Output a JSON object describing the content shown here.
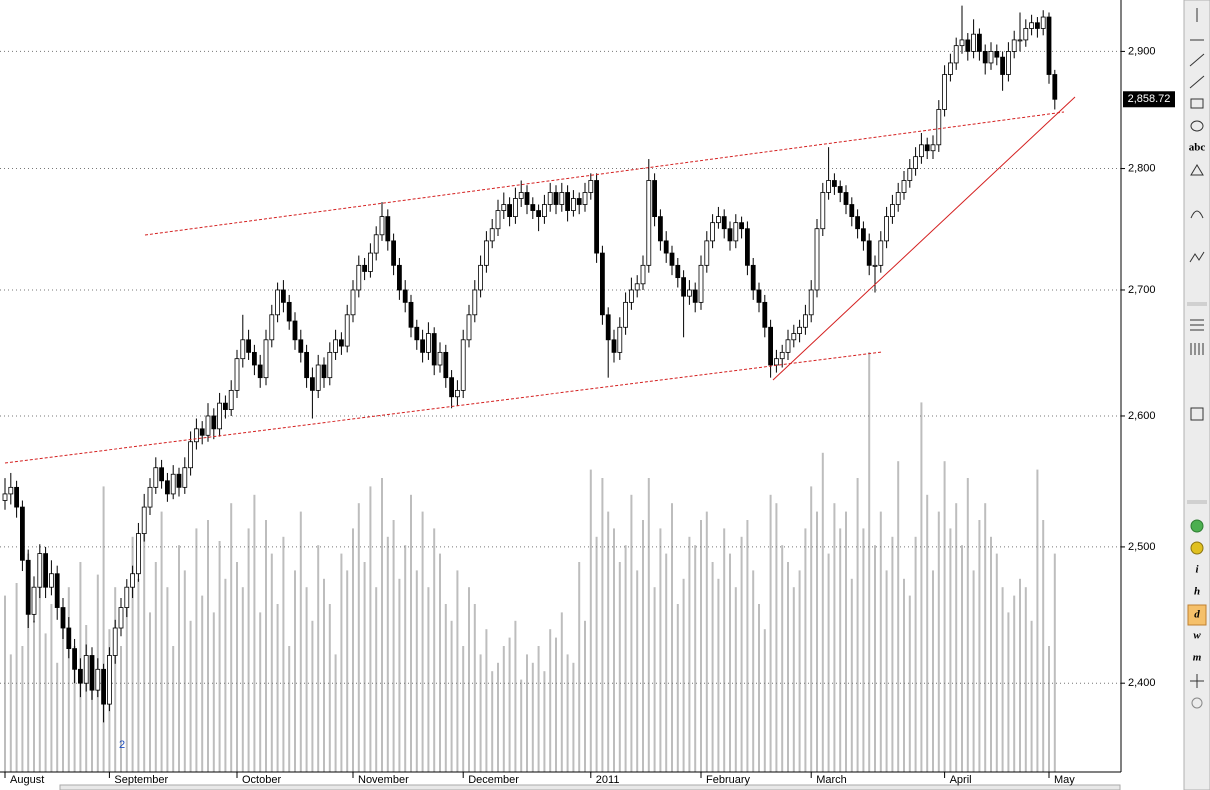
{
  "chart_data": {
    "type": "candlestick",
    "ylim": [
      2337,
      2945
    ],
    "log_scale": true,
    "grid": true,
    "yticks": [
      {
        "value": 2400,
        "label": "2,400"
      },
      {
        "value": 2500,
        "label": "2,500"
      },
      {
        "value": 2600,
        "label": "2,600"
      },
      {
        "value": 2700,
        "label": "2,700"
      },
      {
        "value": 2800,
        "label": "2,800"
      },
      {
        "value": 2900,
        "label": "2,900"
      }
    ],
    "last_price": {
      "value": 2858.72,
      "label": "2,858.72"
    },
    "annotations": [
      "2"
    ],
    "up_color": "#ffffff",
    "down_color": "#000000",
    "volume_color": "#bdbdbd",
    "categories": [
      "August",
      null,
      null,
      null,
      null,
      null,
      null,
      null,
      null,
      null,
      null,
      null,
      null,
      null,
      null,
      null,
      null,
      null,
      "September",
      null,
      null,
      null,
      null,
      null,
      null,
      null,
      null,
      null,
      null,
      null,
      null,
      null,
      null,
      null,
      null,
      null,
      null,
      null,
      null,
      null,
      "October",
      null,
      null,
      null,
      null,
      null,
      null,
      null,
      null,
      null,
      null,
      null,
      null,
      null,
      null,
      null,
      null,
      null,
      null,
      null,
      "November",
      null,
      null,
      null,
      null,
      null,
      null,
      null,
      null,
      null,
      null,
      null,
      null,
      null,
      null,
      null,
      null,
      null,
      null,
      "December",
      null,
      null,
      null,
      null,
      null,
      null,
      null,
      null,
      null,
      null,
      null,
      null,
      null,
      null,
      null,
      null,
      null,
      null,
      null,
      null,
      null,
      "2011",
      null,
      null,
      null,
      null,
      null,
      null,
      null,
      null,
      null,
      null,
      null,
      null,
      null,
      null,
      null,
      null,
      null,
      null,
      "February",
      null,
      null,
      null,
      null,
      null,
      null,
      null,
      null,
      null,
      null,
      null,
      null,
      null,
      null,
      null,
      null,
      null,
      null,
      "March",
      null,
      null,
      null,
      null,
      null,
      null,
      null,
      null,
      null,
      null,
      null,
      null,
      null,
      null,
      null,
      null,
      null,
      null,
      null,
      null,
      null,
      null,
      "April",
      null,
      null,
      null,
      null,
      null,
      null,
      null,
      null,
      null,
      null,
      null,
      null,
      null,
      null,
      null,
      null,
      null,
      "May",
      null
    ],
    "ohlc": [
      [
        2535,
        2552,
        2528,
        2540
      ],
      [
        2540,
        2556,
        2532,
        2545
      ],
      [
        2545,
        2550,
        2522,
        2530
      ],
      [
        2530,
        2535,
        2482,
        2490
      ],
      [
        2490,
        2498,
        2440,
        2450
      ],
      [
        2450,
        2478,
        2444,
        2470
      ],
      [
        2470,
        2502,
        2462,
        2495
      ],
      [
        2495,
        2500,
        2462,
        2470
      ],
      [
        2470,
        2490,
        2464,
        2480
      ],
      [
        2480,
        2486,
        2446,
        2455
      ],
      [
        2455,
        2462,
        2432,
        2440
      ],
      [
        2440,
        2448,
        2418,
        2425
      ],
      [
        2425,
        2432,
        2400,
        2410
      ],
      [
        2410,
        2418,
        2390,
        2400
      ],
      [
        2400,
        2428,
        2394,
        2420
      ],
      [
        2420,
        2426,
        2388,
        2395
      ],
      [
        2395,
        2418,
        2390,
        2410
      ],
      [
        2410,
        2414,
        2372,
        2385
      ],
      [
        2385,
        2426,
        2380,
        2420
      ],
      [
        2420,
        2446,
        2414,
        2440
      ],
      [
        2440,
        2462,
        2434,
        2455
      ],
      [
        2455,
        2476,
        2448,
        2470
      ],
      [
        2470,
        2486,
        2462,
        2480
      ],
      [
        2480,
        2518,
        2474,
        2510
      ],
      [
        2510,
        2540,
        2504,
        2530
      ],
      [
        2530,
        2552,
        2524,
        2545
      ],
      [
        2545,
        2568,
        2540,
        2560
      ],
      [
        2560,
        2566,
        2544,
        2550
      ],
      [
        2550,
        2556,
        2534,
        2540
      ],
      [
        2540,
        2562,
        2536,
        2555
      ],
      [
        2555,
        2560,
        2538,
        2545
      ],
      [
        2545,
        2568,
        2540,
        2560
      ],
      [
        2560,
        2588,
        2554,
        2580
      ],
      [
        2580,
        2598,
        2574,
        2590
      ],
      [
        2590,
        2596,
        2578,
        2585
      ],
      [
        2585,
        2610,
        2580,
        2600
      ],
      [
        2600,
        2606,
        2582,
        2590
      ],
      [
        2590,
        2618,
        2584,
        2610
      ],
      [
        2610,
        2616,
        2598,
        2605
      ],
      [
        2605,
        2628,
        2600,
        2620
      ],
      [
        2620,
        2652,
        2614,
        2645
      ],
      [
        2645,
        2680,
        2638,
        2660
      ],
      [
        2660,
        2668,
        2644,
        2650
      ],
      [
        2650,
        2656,
        2632,
        2640
      ],
      [
        2640,
        2648,
        2622,
        2630
      ],
      [
        2630,
        2668,
        2624,
        2660
      ],
      [
        2660,
        2688,
        2654,
        2680
      ],
      [
        2680,
        2706,
        2674,
        2700
      ],
      [
        2700,
        2708,
        2682,
        2690
      ],
      [
        2690,
        2696,
        2668,
        2675
      ],
      [
        2675,
        2682,
        2652,
        2660
      ],
      [
        2660,
        2668,
        2642,
        2650
      ],
      [
        2650,
        2656,
        2622,
        2630
      ],
      [
        2630,
        2638,
        2598,
        2620
      ],
      [
        2620,
        2648,
        2614,
        2640
      ],
      [
        2640,
        2646,
        2622,
        2630
      ],
      [
        2630,
        2658,
        2624,
        2650
      ],
      [
        2650,
        2668,
        2644,
        2660
      ],
      [
        2660,
        2666,
        2648,
        2655
      ],
      [
        2655,
        2688,
        2650,
        2680
      ],
      [
        2680,
        2708,
        2674,
        2700
      ],
      [
        2700,
        2728,
        2694,
        2720
      ],
      [
        2720,
        2726,
        2708,
        2715
      ],
      [
        2715,
        2738,
        2710,
        2730
      ],
      [
        2730,
        2752,
        2724,
        2745
      ],
      [
        2745,
        2772,
        2740,
        2760
      ],
      [
        2760,
        2766,
        2732,
        2740
      ],
      [
        2740,
        2746,
        2712,
        2720
      ],
      [
        2720,
        2726,
        2692,
        2700
      ],
      [
        2700,
        2708,
        2682,
        2690
      ],
      [
        2690,
        2696,
        2662,
        2670
      ],
      [
        2670,
        2676,
        2652,
        2660
      ],
      [
        2660,
        2668,
        2642,
        2650
      ],
      [
        2650,
        2674,
        2644,
        2665
      ],
      [
        2665,
        2670,
        2632,
        2640
      ],
      [
        2640,
        2658,
        2634,
        2650
      ],
      [
        2650,
        2656,
        2622,
        2630
      ],
      [
        2630,
        2636,
        2606,
        2615
      ],
      [
        2615,
        2628,
        2608,
        2620
      ],
      [
        2620,
        2668,
        2614,
        2660
      ],
      [
        2660,
        2688,
        2654,
        2680
      ],
      [
        2680,
        2708,
        2674,
        2700
      ],
      [
        2700,
        2728,
        2694,
        2720
      ],
      [
        2720,
        2748,
        2714,
        2740
      ],
      [
        2740,
        2758,
        2734,
        2750
      ],
      [
        2750,
        2774,
        2744,
        2765
      ],
      [
        2765,
        2780,
        2758,
        2770
      ],
      [
        2770,
        2776,
        2752,
        2760
      ],
      [
        2760,
        2784,
        2754,
        2775
      ],
      [
        2775,
        2790,
        2768,
        2780
      ],
      [
        2780,
        2786,
        2762,
        2770
      ],
      [
        2770,
        2776,
        2758,
        2765
      ],
      [
        2765,
        2770,
        2748,
        2760
      ],
      [
        2760,
        2778,
        2754,
        2770
      ],
      [
        2770,
        2788,
        2764,
        2780
      ],
      [
        2780,
        2786,
        2762,
        2770
      ],
      [
        2770,
        2788,
        2764,
        2780
      ],
      [
        2780,
        2786,
        2756,
        2765
      ],
      [
        2765,
        2782,
        2760,
        2775
      ],
      [
        2775,
        2780,
        2762,
        2770
      ],
      [
        2770,
        2788,
        2764,
        2780
      ],
      [
        2780,
        2796,
        2774,
        2790
      ],
      [
        2790,
        2796,
        2722,
        2730
      ],
      [
        2730,
        2736,
        2672,
        2680
      ],
      [
        2680,
        2686,
        2630,
        2660
      ],
      [
        2660,
        2668,
        2642,
        2650
      ],
      [
        2650,
        2678,
        2644,
        2670
      ],
      [
        2670,
        2698,
        2664,
        2690
      ],
      [
        2690,
        2710,
        2684,
        2700
      ],
      [
        2700,
        2712,
        2694,
        2705
      ],
      [
        2705,
        2728,
        2700,
        2720
      ],
      [
        2720,
        2808,
        2714,
        2790
      ],
      [
        2790,
        2796,
        2752,
        2760
      ],
      [
        2760,
        2766,
        2732,
        2740
      ],
      [
        2740,
        2748,
        2722,
        2730
      ],
      [
        2730,
        2736,
        2712,
        2720
      ],
      [
        2720,
        2726,
        2702,
        2710
      ],
      [
        2710,
        2716,
        2662,
        2695
      ],
      [
        2695,
        2708,
        2688,
        2700
      ],
      [
        2700,
        2706,
        2682,
        2690
      ],
      [
        2690,
        2728,
        2684,
        2720
      ],
      [
        2720,
        2748,
        2714,
        2740
      ],
      [
        2740,
        2762,
        2734,
        2755
      ],
      [
        2755,
        2768,
        2750,
        2760
      ],
      [
        2760,
        2766,
        2742,
        2750
      ],
      [
        2750,
        2756,
        2732,
        2740
      ],
      [
        2740,
        2762,
        2734,
        2755
      ],
      [
        2755,
        2760,
        2742,
        2750
      ],
      [
        2750,
        2756,
        2712,
        2720
      ],
      [
        2720,
        2726,
        2692,
        2700
      ],
      [
        2700,
        2706,
        2682,
        2690
      ],
      [
        2690,
        2696,
        2662,
        2670
      ],
      [
        2670,
        2676,
        2630,
        2640
      ],
      [
        2640,
        2652,
        2634,
        2645
      ],
      [
        2645,
        2656,
        2638,
        2650
      ],
      [
        2650,
        2668,
        2644,
        2660
      ],
      [
        2660,
        2672,
        2654,
        2665
      ],
      [
        2665,
        2676,
        2658,
        2670
      ],
      [
        2670,
        2688,
        2664,
        2680
      ],
      [
        2680,
        2708,
        2674,
        2700
      ],
      [
        2700,
        2758,
        2694,
        2750
      ],
      [
        2750,
        2788,
        2744,
        2780
      ],
      [
        2780,
        2818,
        2774,
        2790
      ],
      [
        2790,
        2796,
        2778,
        2785
      ],
      [
        2785,
        2790,
        2772,
        2780
      ],
      [
        2780,
        2786,
        2762,
        2770
      ],
      [
        2770,
        2776,
        2752,
        2760
      ],
      [
        2760,
        2766,
        2742,
        2750
      ],
      [
        2750,
        2756,
        2732,
        2740
      ],
      [
        2740,
        2746,
        2712,
        2720
      ],
      [
        2720,
        2728,
        2698,
        2720
      ],
      [
        2720,
        2748,
        2714,
        2740
      ],
      [
        2740,
        2768,
        2734,
        2760
      ],
      [
        2760,
        2778,
        2754,
        2770
      ],
      [
        2770,
        2788,
        2764,
        2780
      ],
      [
        2780,
        2798,
        2774,
        2790
      ],
      [
        2790,
        2808,
        2784,
        2800
      ],
      [
        2800,
        2818,
        2794,
        2810
      ],
      [
        2810,
        2830,
        2804,
        2820
      ],
      [
        2820,
        2826,
        2808,
        2815
      ],
      [
        2815,
        2828,
        2808,
        2820
      ],
      [
        2820,
        2858,
        2814,
        2850
      ],
      [
        2850,
        2888,
        2844,
        2880
      ],
      [
        2880,
        2898,
        2874,
        2890
      ],
      [
        2890,
        2912,
        2884,
        2905
      ],
      [
        2905,
        2940,
        2898,
        2910
      ],
      [
        2910,
        2916,
        2892,
        2900
      ],
      [
        2900,
        2928,
        2894,
        2915
      ],
      [
        2915,
        2920,
        2892,
        2900
      ],
      [
        2900,
        2906,
        2880,
        2890
      ],
      [
        2890,
        2908,
        2884,
        2900
      ],
      [
        2900,
        2906,
        2888,
        2895
      ],
      [
        2895,
        2900,
        2866,
        2880
      ],
      [
        2880,
        2908,
        2874,
        2900
      ],
      [
        2900,
        2918,
        2894,
        2910
      ],
      [
        2910,
        2934,
        2900,
        2910
      ],
      [
        2910,
        2928,
        2904,
        2920
      ],
      [
        2920,
        2932,
        2914,
        2925
      ],
      [
        2925,
        2930,
        2912,
        2920
      ],
      [
        2920,
        2936,
        2914,
        2930
      ],
      [
        2930,
        2934,
        2872,
        2880
      ],
      [
        2880,
        2884,
        2850,
        2858.72
      ]
    ],
    "volume": [
      42,
      28,
      45,
      30,
      52,
      36,
      48,
      33,
      40,
      26,
      38,
      44,
      30,
      50,
      35,
      24,
      47,
      68,
      34,
      44,
      30,
      40,
      56,
      46,
      60,
      38,
      50,
      62,
      44,
      30,
      54,
      48,
      36,
      58,
      42,
      60,
      38,
      55,
      46,
      64,
      50,
      44,
      58,
      66,
      38,
      60,
      52,
      40,
      56,
      30,
      48,
      62,
      44,
      36,
      54,
      46,
      40,
      28,
      52,
      48,
      58,
      64,
      50,
      68,
      44,
      70,
      56,
      60,
      46,
      54,
      66,
      48,
      62,
      44,
      58,
      52,
      40,
      36,
      48,
      30,
      44,
      40,
      28,
      34,
      24,
      26,
      30,
      32,
      36,
      22,
      28,
      26,
      30,
      24,
      34,
      32,
      38,
      28,
      26,
      50,
      36,
      72,
      56,
      70,
      62,
      58,
      50,
      54,
      66,
      48,
      60,
      70,
      44,
      58,
      52,
      64,
      40,
      46,
      56,
      54,
      60,
      62,
      50,
      46,
      58,
      52,
      44,
      56,
      60,
      48,
      40,
      34,
      66,
      64,
      54,
      50,
      44,
      48,
      58,
      68,
      62,
      76,
      52,
      64,
      58,
      62,
      46,
      70,
      58,
      100,
      54,
      62,
      48,
      56,
      74,
      46,
      42,
      56,
      88,
      66,
      48,
      62,
      74,
      58,
      64,
      54,
      70,
      48,
      60,
      64,
      56,
      52,
      44,
      38,
      42,
      46,
      44,
      36,
      72,
      60,
      30,
      52
    ]
  },
  "toolbar": {
    "labels": [
      "abc",
      "i",
      "h",
      "d",
      "w",
      "m"
    ]
  }
}
